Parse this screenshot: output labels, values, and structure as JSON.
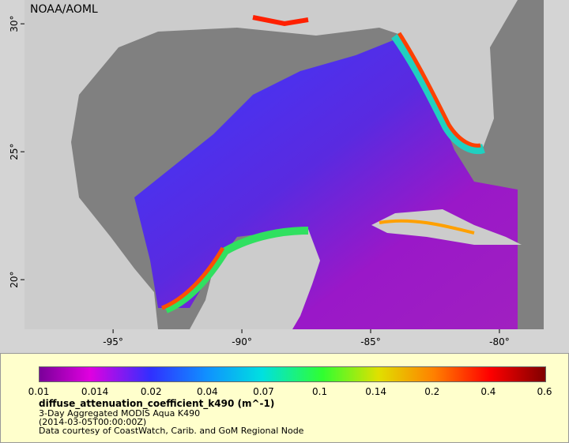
{
  "map": {
    "attribution": "NOAA/AOML",
    "xlim": [
      -98.44,
      -78.28
    ],
    "ylim": [
      18.06,
      30.93
    ],
    "lat_ticks": [
      {
        "value": 30,
        "label": "30°"
      },
      {
        "value": 25,
        "label": "25°"
      },
      {
        "value": 20,
        "label": "20°"
      }
    ],
    "lon_ticks": [
      {
        "value": -95,
        "label": "-95°"
      },
      {
        "value": -90,
        "label": "-90°"
      },
      {
        "value": -85,
        "label": "-85°"
      },
      {
        "value": -80,
        "label": "-80°"
      }
    ]
  },
  "colorbar": {
    "labels": [
      "0.01",
      "0.014",
      "0.02",
      "0.04",
      "0.07",
      "0.1",
      "0.14",
      "0.2",
      "0.4",
      "0.6"
    ]
  },
  "caption": {
    "title": "diffuse_attenuation_coefficient_k490 (m^-1)",
    "lines": [
      "3-Day Aggregated MODIS Aqua K490",
      "(2014-03-05T00:00:00Z)",
      "Data courtesy of CoastWatch, Carib. and GoM Regional Node"
    ]
  }
}
